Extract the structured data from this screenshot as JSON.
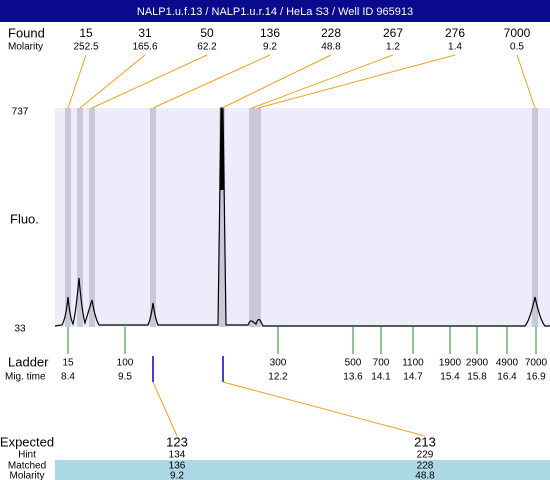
{
  "title": "NALP1.u.f.13 / NALP1.u.r.14 / HeLa S3 / Well ID 965913",
  "found": {
    "label": "Found",
    "molarity_label": "Molarity",
    "peaks": [
      {
        "size": 15,
        "molarity": 252.5
      },
      {
        "size": 31,
        "molarity": 165.6
      },
      {
        "size": 50,
        "molarity": 62.2
      },
      {
        "size": 136,
        "molarity": 9.2
      },
      {
        "size": 228,
        "molarity": 48.8
      },
      {
        "size": 267,
        "molarity": 1.2
      },
      {
        "size": 276,
        "molarity": 1.4
      },
      {
        "size": 7000,
        "molarity": 0.5
      }
    ]
  },
  "axis": {
    "label": "Fluo.",
    "max": 737,
    "min": 33
  },
  "ladder": {
    "label": "Ladder",
    "time_label": "Mig. time",
    "peaks": [
      {
        "size": 15,
        "time": 8.4
      },
      {
        "size": 100,
        "time": 9.5
      },
      {
        "size": 300,
        "time": 12.2
      },
      {
        "size": 500,
        "time": 13.6
      },
      {
        "size": 700,
        "time": 14.1
      },
      {
        "size": 1100,
        "time": 14.7
      },
      {
        "size": 1900,
        "time": 15.4
      },
      {
        "size": 2900,
        "time": 15.8
      },
      {
        "size": 4900,
        "time": 16.4
      },
      {
        "size": 7000,
        "time": 16.9
      }
    ]
  },
  "expected": {
    "label": "Expected",
    "hint_label": "Hint",
    "matched_label": "Matched",
    "molarity_label": "Molarity",
    "items": [
      {
        "size": 123,
        "hint": 134,
        "matched": 136,
        "molarity": 9.2
      },
      {
        "size": 213,
        "hint": 229,
        "matched": 228,
        "molarity": 48.8
      }
    ]
  }
}
